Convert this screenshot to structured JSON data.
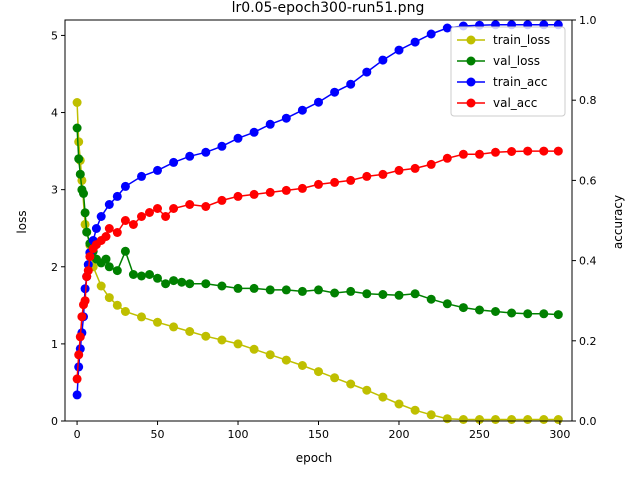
{
  "chart_data": {
    "type": "line",
    "title": "lr0.05-epoch300-run51.png",
    "xlabel": "epoch",
    "ylabel_left": "loss",
    "ylabel_right": "accuracy",
    "xlim": [
      -7.5,
      307.5
    ],
    "ylim_left": [
      0,
      5.2
    ],
    "ylim_right": [
      0,
      1.0
    ],
    "x_ticks": [
      0,
      50,
      100,
      150,
      200,
      250,
      300
    ],
    "y_ticks_left": [
      0,
      1,
      2,
      3,
      4,
      5
    ],
    "y_ticks_right": [
      0.0,
      0.2,
      0.4,
      0.6,
      0.8,
      1.0
    ],
    "legend_position": "top-right",
    "grid": false,
    "series": [
      {
        "name": "train_loss",
        "axis": "left",
        "color": "#bfbf00",
        "x": [
          0,
          1,
          2,
          3,
          5,
          8,
          10,
          15,
          20,
          25,
          30,
          40,
          50,
          60,
          70,
          80,
          90,
          100,
          110,
          120,
          130,
          140,
          150,
          160,
          170,
          180,
          190,
          200,
          210,
          220,
          230,
          240,
          250,
          260,
          270,
          280,
          290,
          299
        ],
        "y": [
          4.13,
          3.62,
          3.38,
          3.12,
          2.55,
          2.28,
          2.0,
          1.75,
          1.6,
          1.5,
          1.42,
          1.35,
          1.28,
          1.22,
          1.16,
          1.1,
          1.05,
          1.0,
          0.93,
          0.86,
          0.79,
          0.72,
          0.64,
          0.56,
          0.48,
          0.4,
          0.31,
          0.22,
          0.14,
          0.08,
          0.03,
          0.02,
          0.02,
          0.02,
          0.02,
          0.02,
          0.02,
          0.02
        ]
      },
      {
        "name": "val_loss",
        "axis": "left",
        "color": "#008000",
        "x": [
          0,
          1,
          2,
          3,
          4,
          5,
          6,
          8,
          10,
          12,
          15,
          18,
          20,
          25,
          30,
          35,
          40,
          45,
          50,
          55,
          60,
          65,
          70,
          80,
          90,
          100,
          110,
          120,
          130,
          140,
          150,
          160,
          170,
          180,
          190,
          200,
          210,
          220,
          230,
          240,
          250,
          260,
          270,
          280,
          290,
          299
        ],
        "y": [
          3.8,
          3.4,
          3.2,
          3.0,
          2.95,
          2.7,
          2.45,
          2.3,
          2.2,
          2.1,
          2.05,
          2.1,
          2.0,
          1.95,
          2.2,
          1.9,
          1.88,
          1.9,
          1.85,
          1.78,
          1.82,
          1.8,
          1.78,
          1.78,
          1.75,
          1.72,
          1.72,
          1.7,
          1.7,
          1.68,
          1.7,
          1.66,
          1.68,
          1.65,
          1.64,
          1.63,
          1.65,
          1.58,
          1.52,
          1.47,
          1.44,
          1.42,
          1.4,
          1.39,
          1.39,
          1.38
        ]
      },
      {
        "name": "train_acc",
        "axis": "right",
        "color": "#0000ff",
        "x": [
          0,
          1,
          2,
          3,
          4,
          5,
          6,
          7,
          8,
          10,
          12,
          15,
          20,
          25,
          30,
          40,
          50,
          60,
          70,
          80,
          90,
          100,
          110,
          120,
          130,
          140,
          150,
          160,
          170,
          180,
          190,
          200,
          210,
          220,
          230,
          240,
          250,
          260,
          270,
          280,
          290,
          299
        ],
        "y": [
          0.065,
          0.135,
          0.18,
          0.22,
          0.26,
          0.33,
          0.36,
          0.39,
          0.42,
          0.45,
          0.48,
          0.51,
          0.54,
          0.56,
          0.585,
          0.61,
          0.625,
          0.645,
          0.66,
          0.67,
          0.685,
          0.705,
          0.72,
          0.74,
          0.755,
          0.775,
          0.795,
          0.82,
          0.84,
          0.87,
          0.9,
          0.925,
          0.945,
          0.965,
          0.98,
          0.985,
          0.987,
          0.988,
          0.988,
          0.988,
          0.988,
          0.988
        ]
      },
      {
        "name": "val_acc",
        "axis": "right",
        "color": "#ff0000",
        "x": [
          0,
          1,
          2,
          3,
          4,
          5,
          6,
          7,
          8,
          10,
          12,
          15,
          18,
          20,
          25,
          30,
          35,
          40,
          45,
          50,
          55,
          60,
          70,
          80,
          90,
          100,
          110,
          120,
          130,
          140,
          150,
          160,
          170,
          180,
          190,
          200,
          210,
          220,
          230,
          240,
          250,
          260,
          270,
          280,
          290,
          299
        ],
        "y": [
          0.105,
          0.165,
          0.21,
          0.26,
          0.29,
          0.3,
          0.36,
          0.375,
          0.41,
          0.43,
          0.44,
          0.45,
          0.46,
          0.48,
          0.47,
          0.5,
          0.49,
          0.51,
          0.52,
          0.53,
          0.51,
          0.53,
          0.54,
          0.535,
          0.55,
          0.56,
          0.565,
          0.57,
          0.575,
          0.58,
          0.59,
          0.595,
          0.6,
          0.61,
          0.615,
          0.625,
          0.63,
          0.64,
          0.655,
          0.665,
          0.665,
          0.67,
          0.672,
          0.673,
          0.673,
          0.673
        ]
      }
    ]
  }
}
